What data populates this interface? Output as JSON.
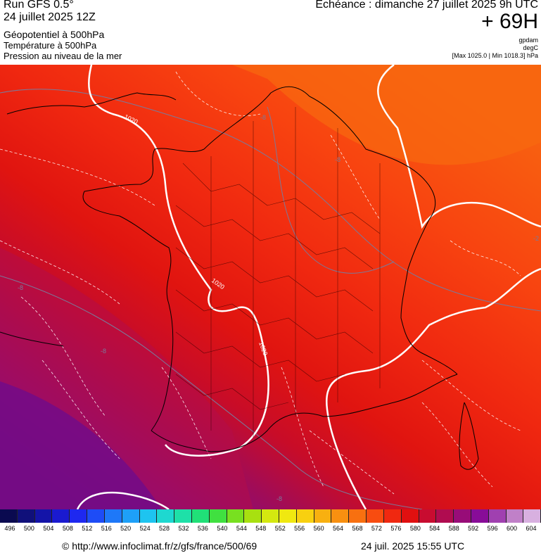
{
  "header": {
    "run": "Run GFS 0.5°",
    "run_date": "24 juillet 2025 12Z",
    "field_geopotential": "Géopotentiel à 500hPa",
    "field_temperature": "Température à 500hPa",
    "field_pressure": "Pression au niveau de la mer",
    "echeance": "Echéance : dimanche 27 juillet 2025 9h UTC",
    "hour": "+ 69H",
    "unit_geopotential": "gpdam",
    "unit_temperature": "degC",
    "pressure_range": "[Max 1025.0 | Min 1018.3] hPa"
  },
  "map": {
    "isobar_labels": [
      "1020",
      "1020",
      "1020"
    ],
    "isotherm_labels": [
      "-8",
      "-8",
      "-8",
      "-8",
      "-8",
      "-2"
    ],
    "colors": {
      "land_outline": "#000000",
      "isobar": "#ffffff",
      "isotherm": "#7a7a9a"
    }
  },
  "scale": {
    "values": [
      "496",
      "500",
      "504",
      "508",
      "512",
      "516",
      "520",
      "524",
      "528",
      "532",
      "536",
      "540",
      "544",
      "548",
      "552",
      "556",
      "560",
      "564",
      "568",
      "572",
      "576",
      "580",
      "584",
      "588",
      "592",
      "596",
      "600",
      "604"
    ],
    "colors": [
      "#0a0a50",
      "#10107a",
      "#1414a8",
      "#1a1ad0",
      "#1e28f0",
      "#1e4cf6",
      "#1e78f8",
      "#1ea0f8",
      "#1ec4f0",
      "#1ed8d0",
      "#1ee0a8",
      "#20e078",
      "#40e040",
      "#78e020",
      "#a8e010",
      "#d4e810",
      "#f0e810",
      "#f8d010",
      "#f8b010",
      "#f89010",
      "#f87010",
      "#f84c10",
      "#f02810",
      "#e01010",
      "#c80c30",
      "#b00c50",
      "#980c78",
      "#880c98",
      "#a040b0",
      "#c080c8",
      "#d8b0e0"
    ]
  },
  "footer": {
    "copyright": "© http://www.infoclimat.fr/z/gfs/france/500/69",
    "timestamp": "24 juil. 2025 15:55 UTC"
  }
}
